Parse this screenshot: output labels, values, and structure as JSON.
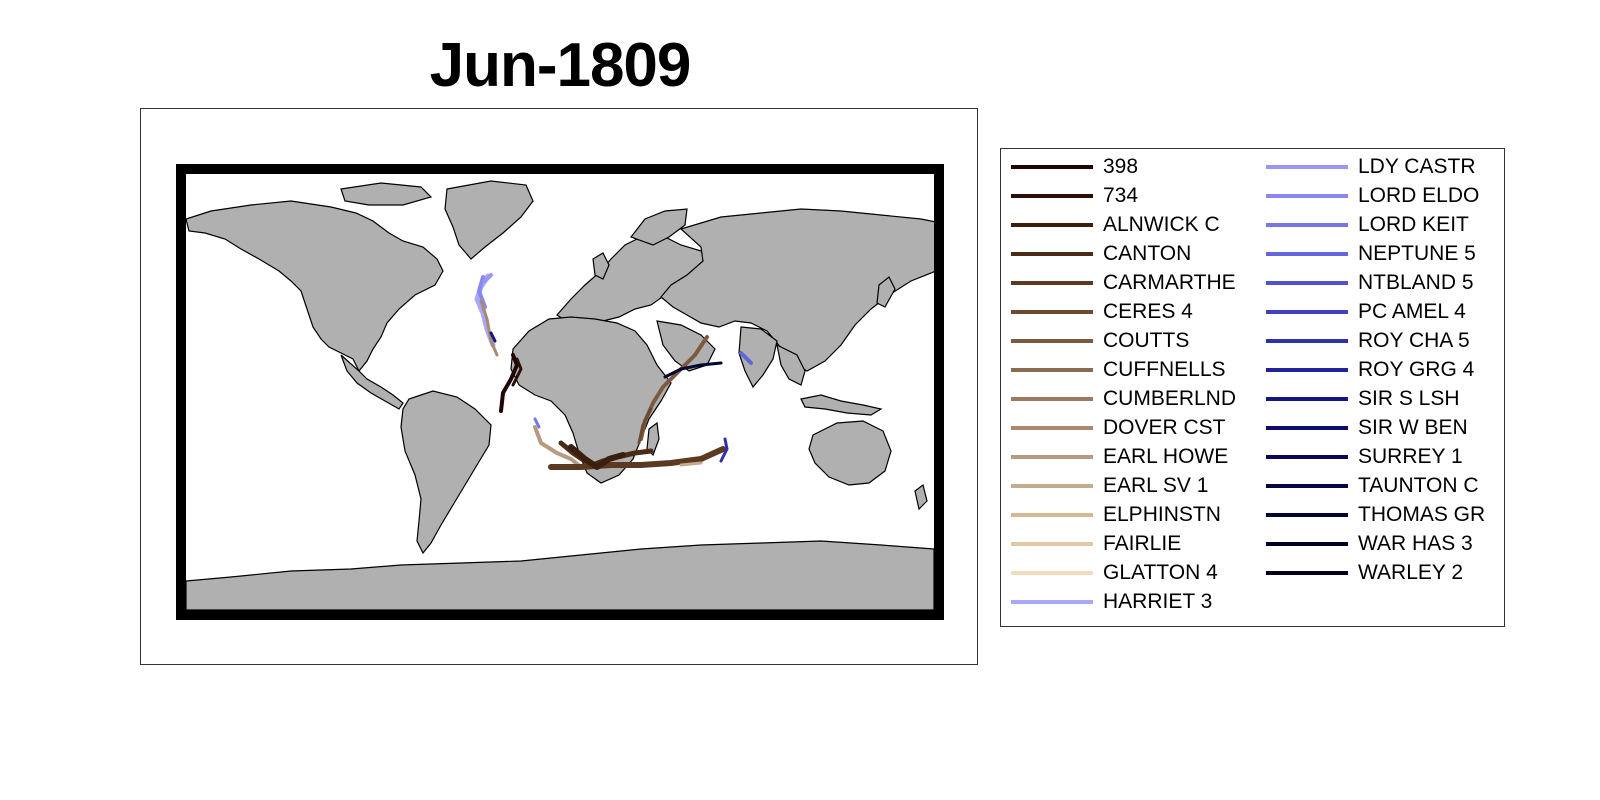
{
  "map": {
    "title": "Jun-1809",
    "land_color": "#b0b0b0",
    "coast_color": "#000000",
    "frame_color": "#000000",
    "background": "#ffffff"
  },
  "legend": {
    "items": [
      {
        "label": "398",
        "color": "#1e0606"
      },
      {
        "label": "734",
        "color": "#2a0e08"
      },
      {
        "label": "ALNWICK C",
        "color": "#3a1e0e"
      },
      {
        "label": "CANTON",
        "color": "#4a2c16"
      },
      {
        "label": "CARMARTHE",
        "color": "#5c3a22"
      },
      {
        "label": "CERES 4",
        "color": "#6b4a30"
      },
      {
        "label": "COUTTS",
        "color": "#7b5a40"
      },
      {
        "label": "CUFFNELLS",
        "color": "#8a6a50"
      },
      {
        "label": "CUMBERLND",
        "color": "#9a7a60"
      },
      {
        "label": "DOVER CST",
        "color": "#a98a70"
      },
      {
        "label": "EARL HOWE",
        "color": "#b89a80"
      },
      {
        "label": "EARL SV 1",
        "color": "#c6aa8c"
      },
      {
        "label": "ELPHINSTN",
        "color": "#d4b894"
      },
      {
        "label": "FAIRLIE",
        "color": "#e2c8a4"
      },
      {
        "label": "GLATTON 4",
        "color": "#f2dcbc"
      },
      {
        "label": "HARRIET 3",
        "color": "#a8a8f8"
      },
      {
        "label": "LDY CASTR",
        "color": "#9898f4"
      },
      {
        "label": "LORD ELDO",
        "color": "#8888f0"
      },
      {
        "label": "LORD KEIT",
        "color": "#7676e6"
      },
      {
        "label": "NEPTUNE 5",
        "color": "#6464dc"
      },
      {
        "label": "NTBLAND 5",
        "color": "#5252d0"
      },
      {
        "label": "PC AMEL 4",
        "color": "#4040c0"
      },
      {
        "label": "ROY CHA 5",
        "color": "#3030ac"
      },
      {
        "label": "ROY GRG 4",
        "color": "#22229a"
      },
      {
        "label": "SIR S LSH",
        "color": "#141484"
      },
      {
        "label": "SIR W BEN",
        "color": "#0c0c6e"
      },
      {
        "label": "SURREY 1",
        "color": "#080858"
      },
      {
        "label": "TAUNTON C",
        "color": "#060646"
      },
      {
        "label": "THOMAS GR",
        "color": "#040436"
      },
      {
        "label": "WAR HAS 3",
        "color": "#020228"
      },
      {
        "label": "WARLEY 2",
        "color": "#02021c"
      }
    ]
  }
}
